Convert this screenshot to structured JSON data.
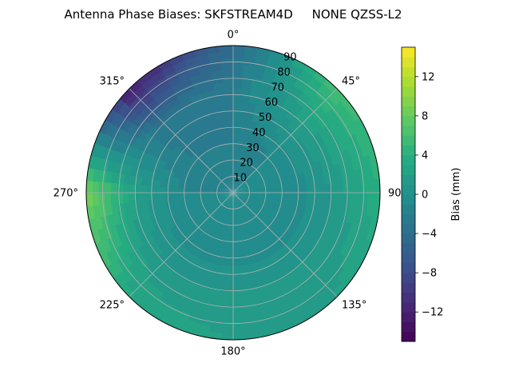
{
  "chart_data": {
    "type": "heatmap",
    "projection": "polar",
    "title": "Antenna Phase Biases: SKFSTREAM4D     NONE QZSS-L2",
    "angular_axis": {
      "direction": "clockwise",
      "zero_location": "top",
      "tick_labels": [
        "0°",
        "45°",
        "90°",
        "135°",
        "180°",
        "225°",
        "270°",
        "315°"
      ],
      "tick_values_deg": [
        0,
        45,
        90,
        135,
        180,
        225,
        270,
        315
      ]
    },
    "radial_axis": {
      "range": [
        0,
        90
      ],
      "tick_values": [
        10,
        20,
        30,
        40,
        50,
        60,
        70,
        80,
        90
      ],
      "tick_labels": [
        "10",
        "20",
        "30",
        "40",
        "50",
        "60",
        "70",
        "80",
        "90"
      ]
    },
    "grid": true,
    "colorbar": {
      "label": "Bias (mm)",
      "colormap": "viridis",
      "range": [
        -15,
        15
      ],
      "tick_values": [
        -12,
        -8,
        -4,
        0,
        4,
        8,
        12
      ],
      "tick_labels": [
        "−12",
        "−8",
        "−4",
        "0",
        "4",
        "8",
        "12"
      ],
      "placement": "right"
    },
    "field_samples": {
      "description_units": "bias in mm sampled at azimuth (deg) by zenith-angle (deg)",
      "azimuth_deg": [
        0,
        45,
        90,
        135,
        180,
        225,
        270,
        315
      ],
      "zenith_deg": [
        0,
        30,
        60,
        90
      ],
      "bias_mm": [
        [
          -1,
          -1,
          -1,
          -1,
          -1,
          -1,
          -1,
          -1
        ],
        [
          -2,
          -1,
          -1,
          -1,
          -1,
          -1,
          -1,
          -2
        ],
        [
          -2,
          2,
          1,
          1,
          1,
          1,
          2,
          -3
        ],
        [
          -4,
          6,
          4,
          2,
          2,
          3,
          9,
          -13
        ]
      ]
    }
  }
}
